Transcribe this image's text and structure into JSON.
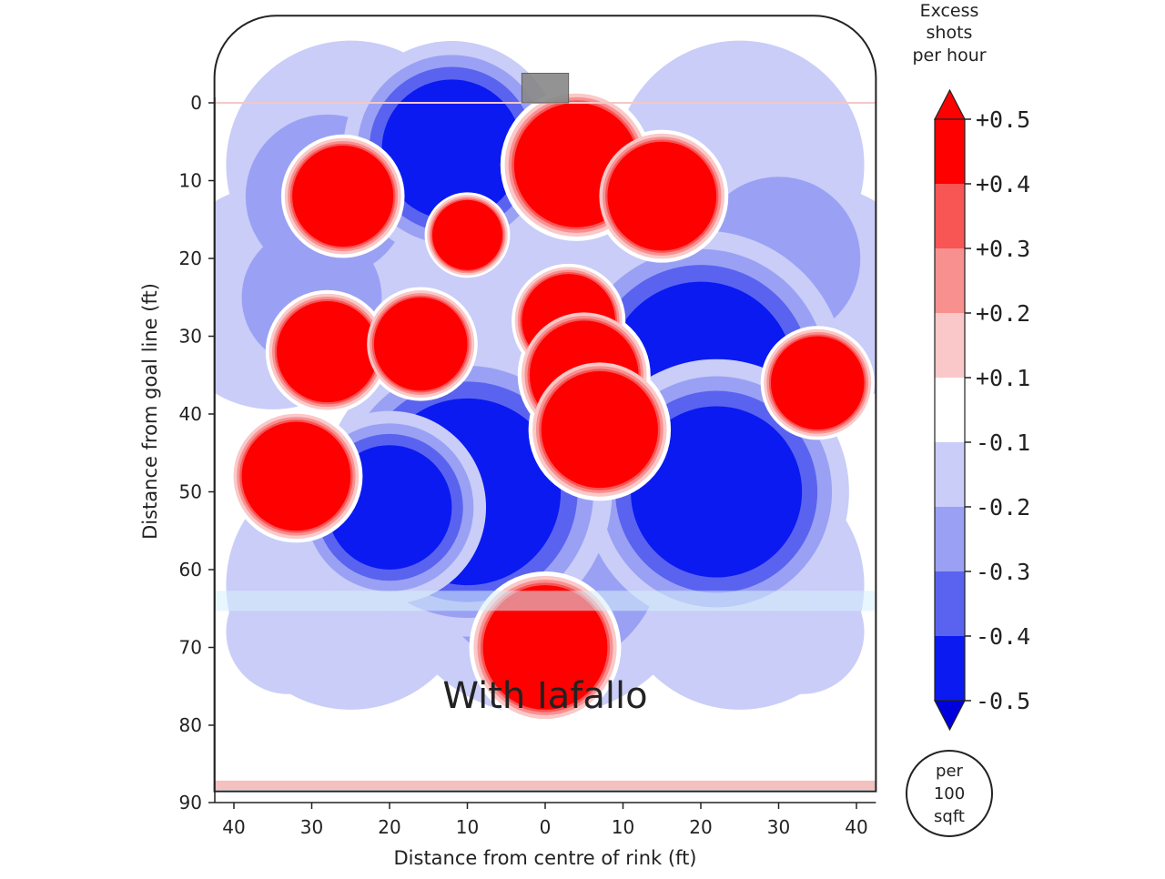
{
  "chart_data": {
    "type": "heatmap",
    "title": "",
    "annotation": "With Iafallo",
    "xlabel": "Distance from centre of rink (ft)",
    "ylabel": "Distance from goal line (ft)",
    "xlim": [
      -42,
      42
    ],
    "ylim": [
      90,
      -11
    ],
    "x_ticks": [
      {
        "v": -40,
        "label": "40"
      },
      {
        "v": -30,
        "label": "30"
      },
      {
        "v": -20,
        "label": "20"
      },
      {
        "v": -10,
        "label": "10"
      },
      {
        "v": 0,
        "label": "0"
      },
      {
        "v": 10,
        "label": "10"
      },
      {
        "v": 20,
        "label": "20"
      },
      {
        "v": 30,
        "label": "30"
      },
      {
        "v": 40,
        "label": "40"
      }
    ],
    "y_ticks": [
      0,
      10,
      20,
      30,
      40,
      50,
      60,
      70,
      80,
      90
    ],
    "colorbar": {
      "title": [
        "Excess",
        "shots",
        "per hour"
      ],
      "ticks": [
        "+0.5",
        "+0.4",
        "+0.3",
        "+0.2",
        "+0.1",
        "-0.1",
        "-0.2",
        "-0.3",
        "-0.4",
        "-0.5"
      ],
      "unit_lines": [
        "per",
        "100",
        "sqft"
      ],
      "levels": [
        {
          "label": "> +0.5",
          "color": "#ff0000"
        },
        {
          "label": "+0.4 to +0.5",
          "color": "#ff0000"
        },
        {
          "label": "+0.3 to +0.4",
          "color": "#f85555"
        },
        {
          "label": "+0.2 to +0.3",
          "color": "#f99090"
        },
        {
          "label": "+0.1 to +0.2",
          "color": "#fac8c8"
        },
        {
          "label": "-0.1 to +0.1",
          "color": "#ffffff"
        },
        {
          "label": "-0.2 to -0.1",
          "color": "#c9cdf8"
        },
        {
          "label": "-0.3 to -0.2",
          "color": "#9aa1f4"
        },
        {
          "label": "-0.4 to -0.3",
          "color": "#5a63f0"
        },
        {
          "label": "-0.5 to -0.4",
          "color": "#0a1af0"
        },
        {
          "label": "< -0.5",
          "color": "#0000dd"
        }
      ]
    },
    "regions": [
      {
        "name": "hot-left-circle",
        "x": -26,
        "y": 12,
        "r": 6.5,
        "value": 0.5
      },
      {
        "name": "hot-small-slot",
        "x": -10,
        "y": 17,
        "r": 4.5,
        "value": 0.5
      },
      {
        "name": "hot-crease-right",
        "x": 4,
        "y": 8,
        "r": 8,
        "value": 0.5
      },
      {
        "name": "hot-right-faceoff",
        "x": 15,
        "y": 12,
        "r": 7,
        "value": 0.5
      },
      {
        "name": "hot-slot-upper",
        "x": 3,
        "y": 28,
        "r": 6,
        "value": 0.5
      },
      {
        "name": "hot-slot-mid",
        "x": 5,
        "y": 35,
        "r": 7,
        "value": 0.5
      },
      {
        "name": "hot-slot-lower",
        "x": 7,
        "y": 42,
        "r": 7.5,
        "value": 0.5
      },
      {
        "name": "hot-left-high-a",
        "x": -28,
        "y": 32,
        "r": 6.5,
        "value": 0.5
      },
      {
        "name": "hot-left-high-b",
        "x": -16,
        "y": 31,
        "r": 6,
        "value": 0.5
      },
      {
        "name": "hot-left-point",
        "x": -32,
        "y": 48,
        "r": 7,
        "value": 0.5
      },
      {
        "name": "hot-right-point",
        "x": 35,
        "y": 36,
        "r": 6,
        "value": 0.5
      },
      {
        "name": "hot-blue-line",
        "x": 0,
        "y": 70,
        "r": 8,
        "value": 0.5
      },
      {
        "name": "cold-crease-left",
        "x": -12,
        "y": 6,
        "r": 9,
        "value": -0.5
      },
      {
        "name": "cold-right-wide",
        "x": 20,
        "y": 35,
        "r": 12,
        "value": -0.5
      },
      {
        "name": "cold-right-low",
        "x": 22,
        "y": 50,
        "r": 11,
        "value": -0.5
      },
      {
        "name": "cold-low-centre",
        "x": -10,
        "y": 50,
        "r": 12,
        "value": -0.5
      },
      {
        "name": "cold-low-left",
        "x": -20,
        "y": 52,
        "r": 8,
        "value": -0.5
      }
    ]
  }
}
